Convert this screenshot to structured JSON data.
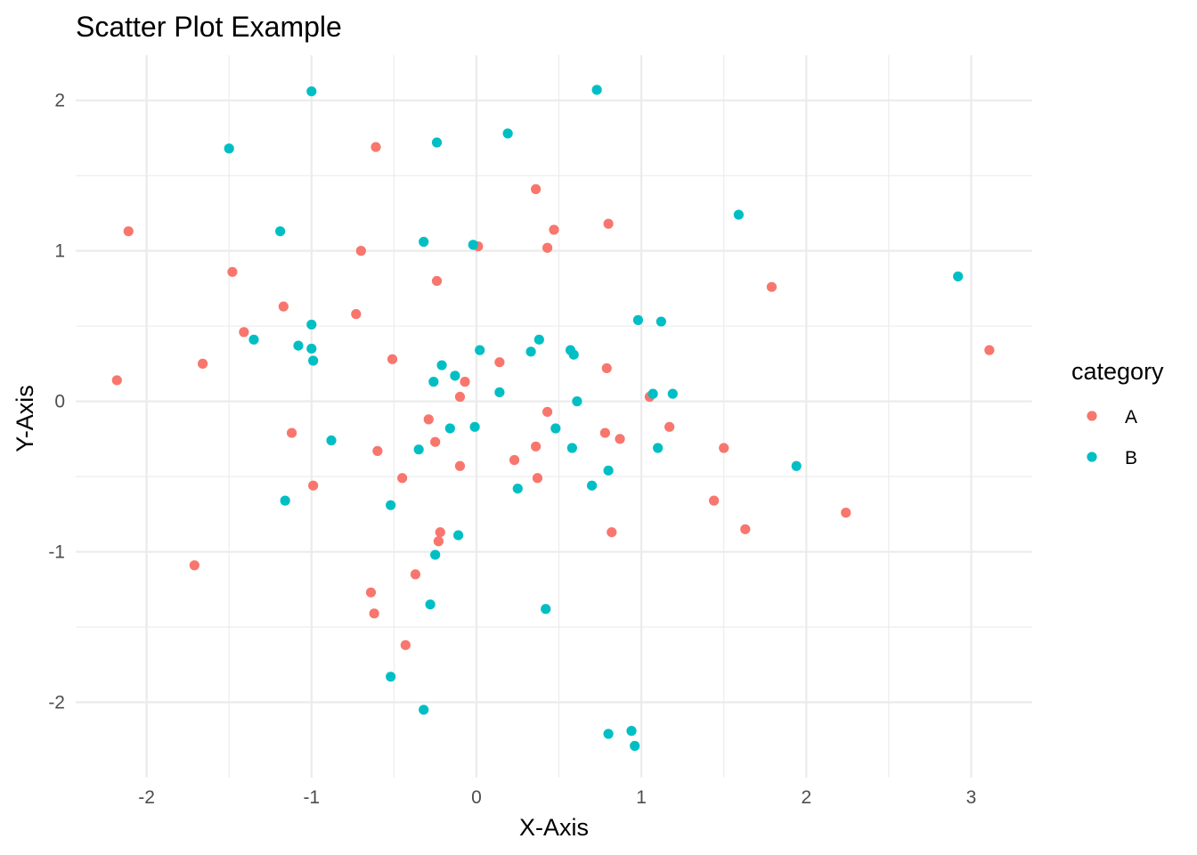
{
  "chart_data": {
    "type": "scatter",
    "title": "Scatter Plot Example",
    "xlabel": "X-Axis",
    "ylabel": "Y-Axis",
    "xlim": [
      -2.43,
      3.37
    ],
    "ylim": [
      -2.5,
      2.3
    ],
    "x_ticks": [
      -2,
      -1,
      0,
      1,
      2,
      3
    ],
    "x_tick_labels": [
      "-2",
      "-1",
      "0",
      "1",
      "2",
      "3"
    ],
    "y_ticks": [
      -2,
      -1,
      0,
      1,
      2
    ],
    "y_tick_labels": [
      "-2",
      "-1",
      "0",
      "1",
      "2"
    ],
    "grid": true,
    "legend": {
      "title": "category",
      "position": "right"
    },
    "series": [
      {
        "name": "A",
        "color": "#F8766D",
        "points": [
          [
            -2.11,
            1.13
          ],
          [
            -2.18,
            0.14
          ],
          [
            -1.48,
            0.86
          ],
          [
            -1.41,
            0.46
          ],
          [
            -1.66,
            0.25
          ],
          [
            -1.71,
            -1.09
          ],
          [
            -1.17,
            0.63
          ],
          [
            -1.12,
            -0.21
          ],
          [
            -0.99,
            -0.56
          ],
          [
            -0.73,
            0.58
          ],
          [
            -0.7,
            1.0
          ],
          [
            -0.61,
            1.69
          ],
          [
            -0.6,
            -0.33
          ],
          [
            -0.64,
            -1.27
          ],
          [
            -0.62,
            -1.41
          ],
          [
            -0.51,
            0.28
          ],
          [
            -0.45,
            -0.51
          ],
          [
            -0.37,
            -1.15
          ],
          [
            -0.43,
            -1.62
          ],
          [
            -0.29,
            -0.12
          ],
          [
            -0.24,
            0.8
          ],
          [
            -0.25,
            -0.27
          ],
          [
            -0.23,
            -0.93
          ],
          [
            -0.22,
            -0.87
          ],
          [
            -0.1,
            0.03
          ],
          [
            -0.1,
            -0.43
          ],
          [
            -0.07,
            0.13
          ],
          [
            0.01,
            1.03
          ],
          [
            0.14,
            0.26
          ],
          [
            0.23,
            -0.39
          ],
          [
            0.36,
            1.41
          ],
          [
            0.36,
            -0.3
          ],
          [
            0.37,
            -0.51
          ],
          [
            0.43,
            1.02
          ],
          [
            0.43,
            -0.07
          ],
          [
            0.47,
            1.14
          ],
          [
            0.78,
            -0.21
          ],
          [
            0.79,
            0.22
          ],
          [
            0.8,
            1.18
          ],
          [
            0.82,
            -0.87
          ],
          [
            0.87,
            -0.25
          ],
          [
            1.05,
            0.03
          ],
          [
            1.17,
            -0.17
          ],
          [
            1.44,
            -0.66
          ],
          [
            1.5,
            -0.31
          ],
          [
            1.63,
            -0.85
          ],
          [
            1.79,
            0.76
          ],
          [
            2.24,
            -0.74
          ],
          [
            3.11,
            0.34
          ]
        ]
      },
      {
        "name": "B",
        "color": "#00BFC4",
        "points": [
          [
            -1.5,
            1.68
          ],
          [
            -1.35,
            0.41
          ],
          [
            -1.19,
            1.13
          ],
          [
            -1.16,
            -0.66
          ],
          [
            -1.08,
            0.37
          ],
          [
            -1.0,
            2.06
          ],
          [
            -1.0,
            0.51
          ],
          [
            -1.0,
            0.35
          ],
          [
            -0.99,
            0.27
          ],
          [
            -0.88,
            -0.26
          ],
          [
            -0.52,
            -0.69
          ],
          [
            -0.52,
            -1.83
          ],
          [
            -0.35,
            -0.32
          ],
          [
            -0.32,
            1.06
          ],
          [
            -0.32,
            -2.05
          ],
          [
            -0.28,
            -1.35
          ],
          [
            -0.26,
            0.13
          ],
          [
            -0.25,
            -1.02
          ],
          [
            -0.24,
            1.72
          ],
          [
            -0.21,
            0.24
          ],
          [
            -0.16,
            -0.18
          ],
          [
            -0.13,
            0.17
          ],
          [
            -0.11,
            -0.89
          ],
          [
            -0.02,
            1.04
          ],
          [
            -0.01,
            -0.17
          ],
          [
            0.02,
            0.34
          ],
          [
            0.14,
            0.06
          ],
          [
            0.19,
            1.78
          ],
          [
            0.25,
            -0.58
          ],
          [
            0.33,
            0.33
          ],
          [
            0.38,
            0.41
          ],
          [
            0.42,
            -1.38
          ],
          [
            0.48,
            -0.18
          ],
          [
            0.57,
            0.34
          ],
          [
            0.58,
            -0.31
          ],
          [
            0.59,
            0.31
          ],
          [
            0.61,
            0.0
          ],
          [
            0.7,
            -0.56
          ],
          [
            0.73,
            2.07
          ],
          [
            0.8,
            -0.46
          ],
          [
            0.8,
            -2.21
          ],
          [
            0.94,
            -2.19
          ],
          [
            0.96,
            -2.29
          ],
          [
            0.98,
            0.54
          ],
          [
            1.07,
            0.05
          ],
          [
            1.1,
            -0.31
          ],
          [
            1.12,
            0.53
          ],
          [
            1.19,
            0.05
          ],
          [
            1.59,
            1.24
          ],
          [
            1.94,
            -0.43
          ],
          [
            2.92,
            0.83
          ]
        ]
      }
    ]
  }
}
